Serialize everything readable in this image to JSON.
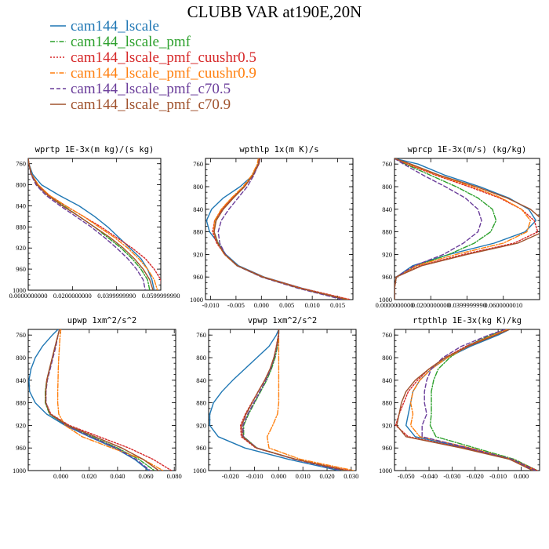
{
  "figure_title": "CLUBB VAR at190E,20N",
  "legend": [
    {
      "name": "cam144_lscale",
      "color": "#1f77b4",
      "dash": "solid"
    },
    {
      "name": "cam144_lscale_pmf",
      "color": "#2ca02c",
      "dash": "dashdot"
    },
    {
      "name": "cam144_lscale_pmf_cuushr0.5",
      "color": "#d62728",
      "dash": "dot"
    },
    {
      "name": "cam144_lscale_pmf_cuushr0.9",
      "color": "#ff7f0e",
      "dash": "dashdot"
    },
    {
      "name": "cam144_lscale_pmf_c70.5",
      "color": "#6a3d9a",
      "dash": "dash"
    },
    {
      "name": "cam144_lscale_pmf_c70.9",
      "color": "#a0522d",
      "dash": "solid"
    }
  ],
  "chart_data": [
    {
      "type": "line",
      "title": "wprtp  1E-3x(m kg)/(s kg)",
      "xlim": [
        0,
        0.06
      ],
      "ylim": [
        1000,
        750
      ],
      "yticks": [
        760,
        800,
        840,
        880,
        920,
        960,
        1000
      ],
      "xticks": [
        {
          "v": 0,
          "label": "0.0000000000"
        },
        {
          "v": 0.02,
          "label": "0.0200000000"
        },
        {
          "v": 0.04,
          "label": "0.0399999990"
        },
        {
          "v": 0.06,
          "label": "0.0599999990"
        }
      ],
      "y": [
        750,
        760,
        780,
        800,
        820,
        840,
        860,
        880,
        900,
        920,
        940,
        960,
        980,
        1000
      ],
      "series": [
        {
          "name": "cam144_lscale",
          "values": [
            0.0,
            0.0003,
            0.002,
            0.006,
            0.014,
            0.023,
            0.03,
            0.036,
            0.041,
            0.046,
            0.051,
            0.054,
            0.056,
            0.057
          ]
        },
        {
          "name": "cam144_lscale_pmf",
          "values": [
            0.0,
            0.0003,
            0.0015,
            0.004,
            0.009,
            0.016,
            0.023,
            0.03,
            0.036,
            0.042,
            0.047,
            0.051,
            0.054,
            0.055
          ]
        },
        {
          "name": "cam144_lscale_pmf_cuushr0.5",
          "values": [
            0.0,
            0.0003,
            0.0015,
            0.0045,
            0.0095,
            0.017,
            0.025,
            0.033,
            0.04,
            0.047,
            0.053,
            0.057,
            0.06,
            0.0605
          ]
        },
        {
          "name": "cam144_lscale_pmf_cuushr0.9",
          "values": [
            0.0,
            0.0003,
            0.0015,
            0.0045,
            0.0095,
            0.017,
            0.025,
            0.032,
            0.039,
            0.045,
            0.05,
            0.054,
            0.057,
            0.0585
          ]
        },
        {
          "name": "cam144_lscale_pmf_c70.5",
          "values": [
            0.0,
            0.0003,
            0.0012,
            0.0035,
            0.008,
            0.0145,
            0.0215,
            0.0285,
            0.0345,
            0.04,
            0.045,
            0.049,
            0.052,
            0.053
          ]
        },
        {
          "name": "cam144_lscale_pmf_c70.9",
          "values": [
            0.0,
            0.0003,
            0.0014,
            0.004,
            0.0088,
            0.0155,
            0.023,
            0.03,
            0.037,
            0.043,
            0.048,
            0.052,
            0.055,
            0.0565
          ]
        }
      ]
    },
    {
      "type": "line",
      "title": "wpthlp  1x(m K)/s",
      "xlim": [
        -0.011,
        0.018
      ],
      "ylim": [
        1000,
        750
      ],
      "yticks": [
        760,
        800,
        840,
        880,
        920,
        960,
        1000
      ],
      "xticks": [
        {
          "v": -0.01,
          "label": "-0.010"
        },
        {
          "v": -0.005,
          "label": "-0.005"
        },
        {
          "v": 0,
          "label": "0.000"
        },
        {
          "v": 0.005,
          "label": "0.005"
        },
        {
          "v": 0.01,
          "label": "0.010"
        },
        {
          "v": 0.015,
          "label": "0.015"
        }
      ],
      "y": [
        750,
        760,
        780,
        800,
        820,
        840,
        860,
        880,
        900,
        920,
        940,
        960,
        980,
        1000
      ],
      "series": [
        {
          "name": "cam144_lscale",
          "values": [
            -0.0003,
            -0.0005,
            -0.0017,
            -0.0042,
            -0.0075,
            -0.0098,
            -0.0108,
            -0.0102,
            -0.0085,
            -0.007,
            -0.0045,
            0.0005,
            0.008,
            0.017
          ]
        },
        {
          "name": "cam144_lscale_pmf",
          "values": [
            -0.0005,
            -0.0007,
            -0.0018,
            -0.0035,
            -0.0058,
            -0.0078,
            -0.0091,
            -0.0093,
            -0.0085,
            -0.0072,
            -0.0048,
            0.0002,
            0.0075,
            0.0165
          ]
        },
        {
          "name": "cam144_lscale_pmf_cuushr0.5",
          "values": [
            -0.0003,
            -0.0005,
            -0.0016,
            -0.0034,
            -0.0057,
            -0.0077,
            -0.0092,
            -0.0096,
            -0.0088,
            -0.0072,
            -0.0047,
            0.0004,
            0.008,
            0.0175
          ]
        },
        {
          "name": "cam144_lscale_pmf_cuushr0.9",
          "values": [
            -0.0006,
            -0.0008,
            -0.0019,
            -0.0036,
            -0.0059,
            -0.0079,
            -0.0092,
            -0.0094,
            -0.0086,
            -0.0073,
            -0.0048,
            0.0003,
            0.0077,
            0.017
          ]
        },
        {
          "name": "cam144_lscale_pmf_c70.5",
          "values": [
            -0.0004,
            -0.0006,
            -0.0015,
            -0.0028,
            -0.0046,
            -0.0064,
            -0.0079,
            -0.0085,
            -0.0082,
            -0.0071,
            -0.0048,
            0.0,
            0.0072,
            0.016
          ]
        },
        {
          "name": "cam144_lscale_pmf_c70.9",
          "values": [
            -0.0004,
            -0.0006,
            -0.0017,
            -0.0033,
            -0.0055,
            -0.0075,
            -0.0089,
            -0.0093,
            -0.0086,
            -0.0072,
            -0.0047,
            0.0002,
            0.0076,
            0.0168
          ]
        }
      ]
    },
    {
      "type": "line",
      "title": "wprcp  1E-3x(m/s) (kg/kg)",
      "xlim": [
        0,
        0.08
      ],
      "ylim": [
        1000,
        750
      ],
      "yticks": [
        760,
        800,
        840,
        880,
        920,
        960,
        1000
      ],
      "xticks": [
        {
          "v": 0,
          "label": "0.0000000000"
        },
        {
          "v": 0.02,
          "label": "0.0200000000"
        },
        {
          "v": 0.04,
          "label": "0.0399999990"
        },
        {
          "v": 0.06,
          "label": "0.0600000010"
        }
      ],
      "y": [
        750,
        760,
        780,
        800,
        820,
        840,
        860,
        880,
        900,
        920,
        940,
        960,
        980,
        1000
      ],
      "series": [
        {
          "name": "cam144_lscale",
          "values": [
            0.0,
            0.013,
            0.028,
            0.047,
            0.063,
            0.074,
            0.078,
            0.072,
            0.055,
            0.03,
            0.01,
            0.001,
            0.0,
            0.0
          ]
        },
        {
          "name": "cam144_lscale_pmf",
          "values": [
            0.0,
            0.006,
            0.02,
            0.034,
            0.046,
            0.054,
            0.056,
            0.053,
            0.044,
            0.03,
            0.012,
            0.001,
            0.0,
            0.0
          ]
        },
        {
          "name": "cam144_lscale_pmf_cuushr0.5",
          "values": [
            0.0,
            0.007,
            0.023,
            0.041,
            0.058,
            0.07,
            0.077,
            0.079,
            0.066,
            0.038,
            0.014,
            0.001,
            0.0,
            0.0
          ]
        },
        {
          "name": "cam144_lscale_pmf_cuushr0.9",
          "values": [
            0.0,
            0.008,
            0.024,
            0.043,
            0.059,
            0.07,
            0.075,
            0.073,
            0.06,
            0.034,
            0.012,
            0.001,
            0.0,
            0.0
          ]
        },
        {
          "name": "cam144_lscale_pmf_c70.5",
          "values": [
            0.0,
            0.005,
            0.016,
            0.028,
            0.039,
            0.046,
            0.048,
            0.046,
            0.038,
            0.027,
            0.011,
            0.001,
            0.0,
            0.0
          ]
        },
        {
          "name": "cam144_lscale_pmf_c70.9",
          "values": [
            0.0,
            0.009,
            0.025,
            0.045,
            0.062,
            0.075,
            0.082,
            0.082,
            0.068,
            0.04,
            0.015,
            0.001,
            0.0,
            0.0
          ]
        }
      ]
    },
    {
      "type": "line",
      "title": "upwp  1xm^2/s^2",
      "xlim": [
        -0.023,
        0.081
      ],
      "ylim": [
        1000,
        750
      ],
      "yticks": [
        760,
        800,
        840,
        880,
        920,
        960,
        1000
      ],
      "xticks": [
        {
          "v": 0,
          "label": "0.000"
        },
        {
          "v": 0.02,
          "label": "0.020"
        },
        {
          "v": 0.04,
          "label": "0.040"
        },
        {
          "v": 0.06,
          "label": "0.060"
        },
        {
          "v": 0.08,
          "label": "0.080"
        }
      ],
      "y": [
        750,
        760,
        780,
        800,
        820,
        840,
        860,
        880,
        900,
        920,
        940,
        960,
        980,
        1000
      ],
      "series": [
        {
          "name": "cam144_lscale",
          "values": [
            -0.002,
            -0.006,
            -0.013,
            -0.018,
            -0.021,
            -0.0225,
            -0.022,
            -0.018,
            -0.01,
            0.003,
            0.02,
            0.038,
            0.052,
            0.062
          ]
        },
        {
          "name": "cam144_lscale_pmf",
          "values": [
            -0.001,
            -0.002,
            -0.004,
            -0.006,
            -0.008,
            -0.01,
            -0.011,
            -0.011,
            -0.008,
            0.004,
            0.022,
            0.04,
            0.055,
            0.066
          ]
        },
        {
          "name": "cam144_lscale_pmf_cuushr0.5",
          "values": [
            -0.001,
            -0.002,
            -0.004,
            -0.006,
            -0.008,
            -0.01,
            -0.0105,
            -0.0105,
            -0.007,
            0.006,
            0.027,
            0.048,
            0.065,
            0.078
          ]
        },
        {
          "name": "cam144_lscale_pmf_cuushr0.9",
          "values": [
            0.0,
            -0.0005,
            -0.001,
            -0.0015,
            -0.0018,
            -0.002,
            -0.0022,
            -0.0022,
            -0.0015,
            0.003,
            0.015,
            0.036,
            0.058,
            0.072
          ]
        },
        {
          "name": "cam144_lscale_pmf_c70.5",
          "values": [
            -0.001,
            -0.002,
            -0.0035,
            -0.0055,
            -0.0075,
            -0.0095,
            -0.0105,
            -0.0105,
            -0.0075,
            0.004,
            0.021,
            0.039,
            0.053,
            0.063
          ]
        },
        {
          "name": "cam144_lscale_pmf_c70.9",
          "values": [
            -0.001,
            -0.002,
            -0.004,
            -0.006,
            -0.008,
            -0.0098,
            -0.0107,
            -0.0107,
            -0.0075,
            0.005,
            0.024,
            0.043,
            0.058,
            0.069
          ]
        }
      ]
    },
    {
      "type": "line",
      "title": "vpwp  1xm^2/s^2",
      "xlim": [
        -0.029,
        0.032
      ],
      "ylim": [
        1000,
        750
      ],
      "yticks": [
        760,
        800,
        840,
        880,
        920,
        960,
        1000
      ],
      "xticks": [
        {
          "v": -0.02,
          "label": "-0.020"
        },
        {
          "v": -0.01,
          "label": "-0.010"
        },
        {
          "v": 0,
          "label": "0.000"
        },
        {
          "v": 0.01,
          "label": "0.010"
        },
        {
          "v": 0.02,
          "label": "0.020"
        },
        {
          "v": 0.03,
          "label": "0.030"
        }
      ],
      "y": [
        750,
        760,
        780,
        800,
        820,
        840,
        860,
        880,
        900,
        920,
        940,
        960,
        980,
        1000
      ],
      "series": [
        {
          "name": "cam144_lscale",
          "values": [
            0.0,
            -0.001,
            -0.004,
            -0.009,
            -0.014,
            -0.019,
            -0.0235,
            -0.027,
            -0.0285,
            -0.0285,
            -0.025,
            -0.014,
            0.004,
            0.025
          ]
        },
        {
          "name": "cam144_lscale_pmf",
          "values": [
            0.0,
            0.0,
            -0.0005,
            -0.0015,
            -0.003,
            -0.005,
            -0.0075,
            -0.01,
            -0.0125,
            -0.0145,
            -0.0145,
            -0.009,
            0.007,
            0.027
          ]
        },
        {
          "name": "cam144_lscale_pmf_cuushr0.5",
          "values": [
            0.0,
            -0.0002,
            -0.001,
            -0.002,
            -0.0035,
            -0.0058,
            -0.0085,
            -0.0112,
            -0.0138,
            -0.0158,
            -0.0155,
            -0.0095,
            0.007,
            0.029
          ]
        },
        {
          "name": "cam144_lscale_pmf_cuushr0.9",
          "values": [
            0.0,
            0.0,
            0.0,
            0.0,
            0.0,
            0.0,
            0.0,
            0.0,
            -0.0005,
            -0.0025,
            -0.0048,
            -0.004,
            0.009,
            0.031
          ]
        },
        {
          "name": "cam144_lscale_pmf_c70.5",
          "values": [
            0.0,
            0.0,
            -0.0007,
            -0.0018,
            -0.0033,
            -0.0053,
            -0.0078,
            -0.0103,
            -0.0128,
            -0.0148,
            -0.0147,
            -0.009,
            0.0065,
            0.026
          ]
        },
        {
          "name": "cam144_lscale_pmf_c70.9",
          "values": [
            0.0,
            -0.0001,
            -0.0009,
            -0.002,
            -0.0036,
            -0.0058,
            -0.0085,
            -0.011,
            -0.0135,
            -0.0153,
            -0.015,
            -0.0092,
            0.007,
            0.028
          ]
        }
      ]
    },
    {
      "type": "line",
      "title": "rtpthlp  1E-3x(kg K)/kg",
      "xlim": [
        -0.055,
        0.008
      ],
      "ylim": [
        1000,
        750
      ],
      "yticks": [
        760,
        800,
        840,
        880,
        920,
        960,
        1000
      ],
      "xticks": [
        {
          "v": -0.05,
          "label": "-0.050"
        },
        {
          "v": -0.04,
          "label": "-0.040"
        },
        {
          "v": -0.03,
          "label": "-0.030"
        },
        {
          "v": -0.02,
          "label": "-0.020"
        },
        {
          "v": -0.01,
          "label": "-0.010"
        },
        {
          "v": 0,
          "label": "0.000"
        }
      ],
      "y": [
        750,
        760,
        780,
        800,
        820,
        840,
        860,
        880,
        900,
        920,
        940,
        960,
        980,
        1000
      ],
      "series": [
        {
          "name": "cam144_lscale",
          "values": [
            -0.005,
            -0.01,
            -0.022,
            -0.032,
            -0.039,
            -0.044,
            -0.047,
            -0.048,
            -0.049,
            -0.05,
            -0.046,
            -0.024,
            -0.005,
            0.006
          ]
        },
        {
          "name": "cam144_lscale_pmf",
          "values": [
            -0.007,
            -0.013,
            -0.024,
            -0.031,
            -0.036,
            -0.038,
            -0.039,
            -0.039,
            -0.039,
            -0.0395,
            -0.037,
            -0.02,
            -0.003,
            0.007
          ]
        },
        {
          "name": "cam144_lscale_pmf_cuushr0.5",
          "values": [
            -0.006,
            -0.012,
            -0.024,
            -0.033,
            -0.04,
            -0.045,
            -0.049,
            -0.051,
            -0.053,
            -0.0545,
            -0.049,
            -0.025,
            -0.004,
            0.007
          ]
        },
        {
          "name": "cam144_lscale_pmf_cuushr0.9",
          "values": [
            -0.006,
            -0.012,
            -0.023,
            -0.032,
            -0.039,
            -0.044,
            -0.047,
            -0.048,
            -0.047,
            -0.048,
            -0.044,
            -0.022,
            -0.004,
            0.006
          ]
        },
        {
          "name": "cam144_lscale_pmf_c70.5",
          "values": [
            -0.007,
            -0.014,
            -0.026,
            -0.034,
            -0.039,
            -0.041,
            -0.042,
            -0.042,
            -0.041,
            -0.043,
            -0.043,
            -0.023,
            -0.004,
            0.006
          ]
        },
        {
          "name": "cam144_lscale_pmf_c70.9",
          "values": [
            -0.005,
            -0.011,
            -0.023,
            -0.033,
            -0.04,
            -0.046,
            -0.05,
            -0.052,
            -0.053,
            -0.054,
            -0.05,
            -0.026,
            -0.005,
            0.005
          ]
        }
      ]
    }
  ]
}
